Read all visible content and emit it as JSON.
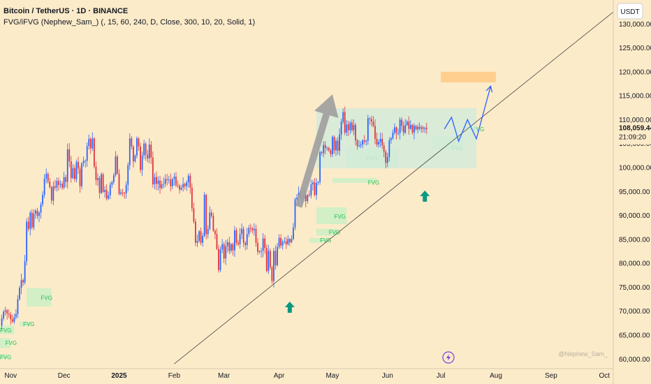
{
  "header": {
    "title": "Bitcoin / TetherUS · 1D · BINANCE",
    "indicator": "FVG/iFVG (Nephew_Sam_) (, 15, 60, 240, D, Close, 300, 10, 20, Solid, 1)"
  },
  "currency_label": "USDT",
  "watermark": "@Nephew_Sam_",
  "colors": {
    "background": "#FCEBC9",
    "up": "#2962FF",
    "down": "#E0313D",
    "fvg_zone": "#CDEFC5",
    "fvg_text": "#1FBF4F",
    "range_box": "#D4EBDA",
    "target_box": "#FFCC88",
    "arrow": "#9E9E9E",
    "marker": "#089981",
    "projection": "#2962FF",
    "trendline": "#444444"
  },
  "icons": {
    "lightning": "lightning-icon",
    "marker": "up-arrow-icon"
  },
  "chart_data": {
    "type": "candlestick",
    "ylim": [
      58000,
      135000
    ],
    "y_ticks": [
      60000,
      65000,
      70000,
      75000,
      80000,
      85000,
      90000,
      95000,
      100000,
      105000,
      110000,
      115000,
      120000,
      125000,
      130000
    ],
    "y_tick_labels": [
      "60,000.00",
      "65,000.00",
      "70,000.00",
      "75,000.00",
      "80,000.00",
      "85,000.00",
      "90,000.00",
      "95,000.00",
      "100,000.00",
      "105,000.00",
      "110,000.00",
      "115,000.00",
      "120,000.00",
      "125,000.00",
      "130,000.00"
    ],
    "x_range": [
      "2024-10-26",
      "2025-10-06"
    ],
    "x_ticks": [
      {
        "date": "2024-11-01",
        "label": "Nov"
      },
      {
        "date": "2024-12-01",
        "label": "Dec"
      },
      {
        "date": "2025-01-01",
        "label": "2025"
      },
      {
        "date": "2025-02-01",
        "label": "Feb"
      },
      {
        "date": "2025-03-01",
        "label": "Mar"
      },
      {
        "date": "2025-04-01",
        "label": "Apr"
      },
      {
        "date": "2025-05-01",
        "label": "May"
      },
      {
        "date": "2025-06-01",
        "label": "Jun"
      },
      {
        "date": "2025-07-01",
        "label": "Jul"
      },
      {
        "date": "2025-08-01",
        "label": "Aug"
      },
      {
        "date": "2025-09-01",
        "label": "Sep"
      },
      {
        "date": "2025-10-01",
        "label": "Oct"
      }
    ],
    "candles_start": "2024-10-26",
    "close_path": [
      67000,
      68500,
      69900,
      70200,
      69500,
      69300,
      68300,
      67800,
      68700,
      69400,
      72500,
      74900,
      76500,
      76000,
      80400,
      88700,
      87200,
      90600,
      87500,
      90400,
      91000,
      89900,
      90600,
      92300,
      94300,
      97700,
      98700,
      97100,
      95900,
      93100,
      96100,
      95800,
      97200,
      96400,
      96600,
      95800,
      98000,
      97000,
      103800,
      101300,
      97800,
      99900,
      97600,
      101200,
      99800,
      96100,
      100900,
      101400,
      101400,
      104500,
      106000,
      104000,
      106100,
      100200,
      97400,
      97800,
      94700,
      98600,
      94900,
      95300,
      93500,
      94200,
      96400,
      97000,
      98400,
      102300,
      98700,
      94500,
      94800,
      94700,
      94600,
      96400,
      100500,
      106100,
      104400,
      101300,
      102500,
      106100,
      104400,
      99500,
      102500,
      105000,
      102700,
      101900,
      104800,
      102100,
      96500,
      98000,
      96600,
      97300,
      95700,
      96500,
      96600,
      97600,
      97400,
      97500,
      96100,
      97600,
      98100,
      96300,
      96200,
      95400,
      95800,
      96600,
      96100,
      96900,
      98300,
      95800,
      91500,
      88700,
      84300,
      84700,
      86700,
      84300,
      85700,
      94300,
      86100,
      87200,
      90600,
      89900,
      86800,
      86100,
      83000,
      78600,
      82900,
      84000,
      81000,
      83600,
      84400,
      82600,
      84000,
      82700,
      86900,
      84300,
      84000,
      86100,
      87200,
      84300,
      83800,
      86100,
      87400,
      87300,
      86900,
      87200,
      84300,
      82400,
      82500,
      82600,
      85200,
      83200,
      78400,
      82600,
      79200,
      76300,
      82600,
      79600,
      83400,
      85300,
      83700,
      84500,
      84600,
      84000,
      85100,
      84400,
      85100,
      87500,
      93400,
      93700,
      94700,
      93900,
      94000,
      94200,
      93000,
      94300,
      94200,
      96500,
      96900,
      94300,
      96800,
      97000,
      103200,
      103000,
      104700,
      104100,
      104100,
      103600,
      102800,
      106400,
      103600,
      105600,
      103500,
      106900,
      109600,
      111600,
      107300,
      109000,
      107800,
      109400,
      107800,
      108900,
      105700,
      104500,
      104600,
      104800,
      105700,
      105400,
      105600,
      110300,
      110100,
      109600,
      108700,
      106000,
      104800,
      105300,
      106000,
      104600,
      103300,
      101000,
      102200,
      105700,
      106100,
      107300,
      108400,
      107200,
      107200,
      110000,
      108700,
      107300,
      108900,
      109600,
      108100,
      108900,
      107300,
      108700,
      108000,
      108500,
      108100,
      108400,
      108100,
      108300,
      108059
    ],
    "target_zone": {
      "start": "2025-07-01",
      "end": "2025-08-01",
      "low": 117800,
      "high": 120000
    },
    "range_box": {
      "start": "2025-04-22",
      "end": "2025-07-21",
      "low": 99800,
      "high": 112400
    },
    "big_arrow": {
      "from": [
        "2025-04-12",
        91800
      ],
      "to": [
        "2025-05-01",
        115300
      ]
    },
    "projection": [
      [
        "2025-07-03",
        108059
      ],
      [
        "2025-07-07",
        110500
      ],
      [
        "2025-07-11",
        105500
      ],
      [
        "2025-07-16",
        110000
      ],
      [
        "2025-07-21",
        106000
      ],
      [
        "2025-07-29",
        117000
      ]
    ],
    "trendline": {
      "from": [
        "2025-02-01",
        59000
      ],
      "to": [
        "2025-10-06",
        132500
      ]
    },
    "fvg_zones": [
      {
        "start": "2024-10-26",
        "end": "2024-11-03",
        "low": 65200,
        "high": 67000,
        "label": "FVG",
        "label_date": "2024-10-26",
        "label_price": 66000
      },
      {
        "start": "2024-10-26",
        "end": "2024-11-01",
        "low": 62300,
        "high": 64400,
        "label": "FVG",
        "label_date": "2024-10-29",
        "label_price": 63400
      },
      {
        "start": "2024-10-26",
        "end": "2024-10-30",
        "low": 60000,
        "high": 61000,
        "label": "FVG",
        "label_date": "2024-10-26",
        "label_price": 60400
      },
      {
        "start": "2024-11-10",
        "end": "2024-11-24",
        "low": 71000,
        "high": 74800,
        "label": "FVG",
        "label_date": "2024-11-18",
        "label_price": 72800
      },
      {
        "start": "2024-11-06",
        "end": "2024-11-12",
        "low": 66800,
        "high": 67800,
        "label": "FVG",
        "label_date": "2024-11-08",
        "label_price": 67300
      },
      {
        "start": "2025-04-22",
        "end": "2025-05-09",
        "low": 88200,
        "high": 91700,
        "label": "FVG",
        "label_date": "2025-05-02",
        "label_price": 89800
      },
      {
        "start": "2025-04-22",
        "end": "2025-05-04",
        "low": 85800,
        "high": 87200,
        "label": "FVG",
        "label_date": "2025-04-29",
        "label_price": 86500
      },
      {
        "start": "2025-04-18",
        "end": "2025-04-28",
        "low": 84300,
        "high": 85300,
        "label": "FVG",
        "label_date": "2025-04-24",
        "label_price": 84800
      },
      {
        "start": "2025-05-09",
        "end": "2025-06-07",
        "low": 100000,
        "high": 104000,
        "label": "FVG",
        "label_date": "2025-05-20",
        "label_price": 102000
      },
      {
        "start": "2025-05-01",
        "end": "2025-05-26",
        "low": 96800,
        "high": 97800,
        "label": "FVG",
        "label_date": "2025-05-21",
        "label_price": 96900
      },
      {
        "start": "2025-06-26",
        "end": "2025-07-14",
        "low": 103800,
        "high": 106500,
        "label": "FVG",
        "label_date": "2025-07-07",
        "label_price": 104000
      },
      {
        "start": "2025-07-16",
        "end": "2025-07-22",
        "low": 107500,
        "high": 108600,
        "label": "FVG",
        "label_date": "2025-07-19",
        "label_price": 108000
      }
    ],
    "markers": [
      {
        "date": "2025-04-07",
        "price": 72000
      },
      {
        "date": "2025-06-22",
        "price": 95200
      }
    ],
    "last_price": {
      "value": 108059.44,
      "label": "108,059.44",
      "countdown": "21:09:20"
    }
  }
}
